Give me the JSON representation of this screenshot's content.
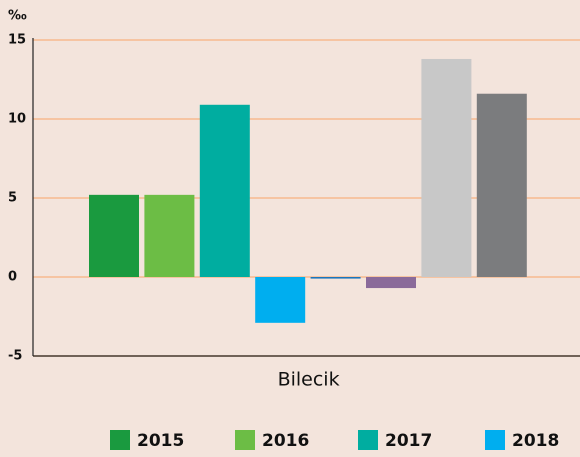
{
  "chart_data": {
    "type": "bar",
    "y_label": "‰",
    "categories": [
      "Bilecik"
    ],
    "series": [
      {
        "name": "2015",
        "color": "#1a9a3f",
        "values": [
          5.2
        ]
      },
      {
        "name": "2016",
        "color": "#6cbd45",
        "values": [
          5.2
        ]
      },
      {
        "name": "2017",
        "color": "#00ada0",
        "values": [
          10.9
        ]
      },
      {
        "name": "2018",
        "color": "#00aeef",
        "values": [
          -2.9
        ]
      },
      {
        "color": "#1b75bc",
        "values": [
          -0.1
        ]
      },
      {
        "color": "#8a6a9a",
        "values": [
          -0.7
        ]
      },
      {
        "color": "#c8c8c8",
        "values": [
          13.8
        ]
      },
      {
        "color": "#7b7c7e",
        "values": [
          11.6
        ]
      }
    ],
    "ylim": [
      -5,
      15
    ],
    "yticks": [
      -5,
      0,
      5,
      10,
      15
    ],
    "grid": true
  }
}
